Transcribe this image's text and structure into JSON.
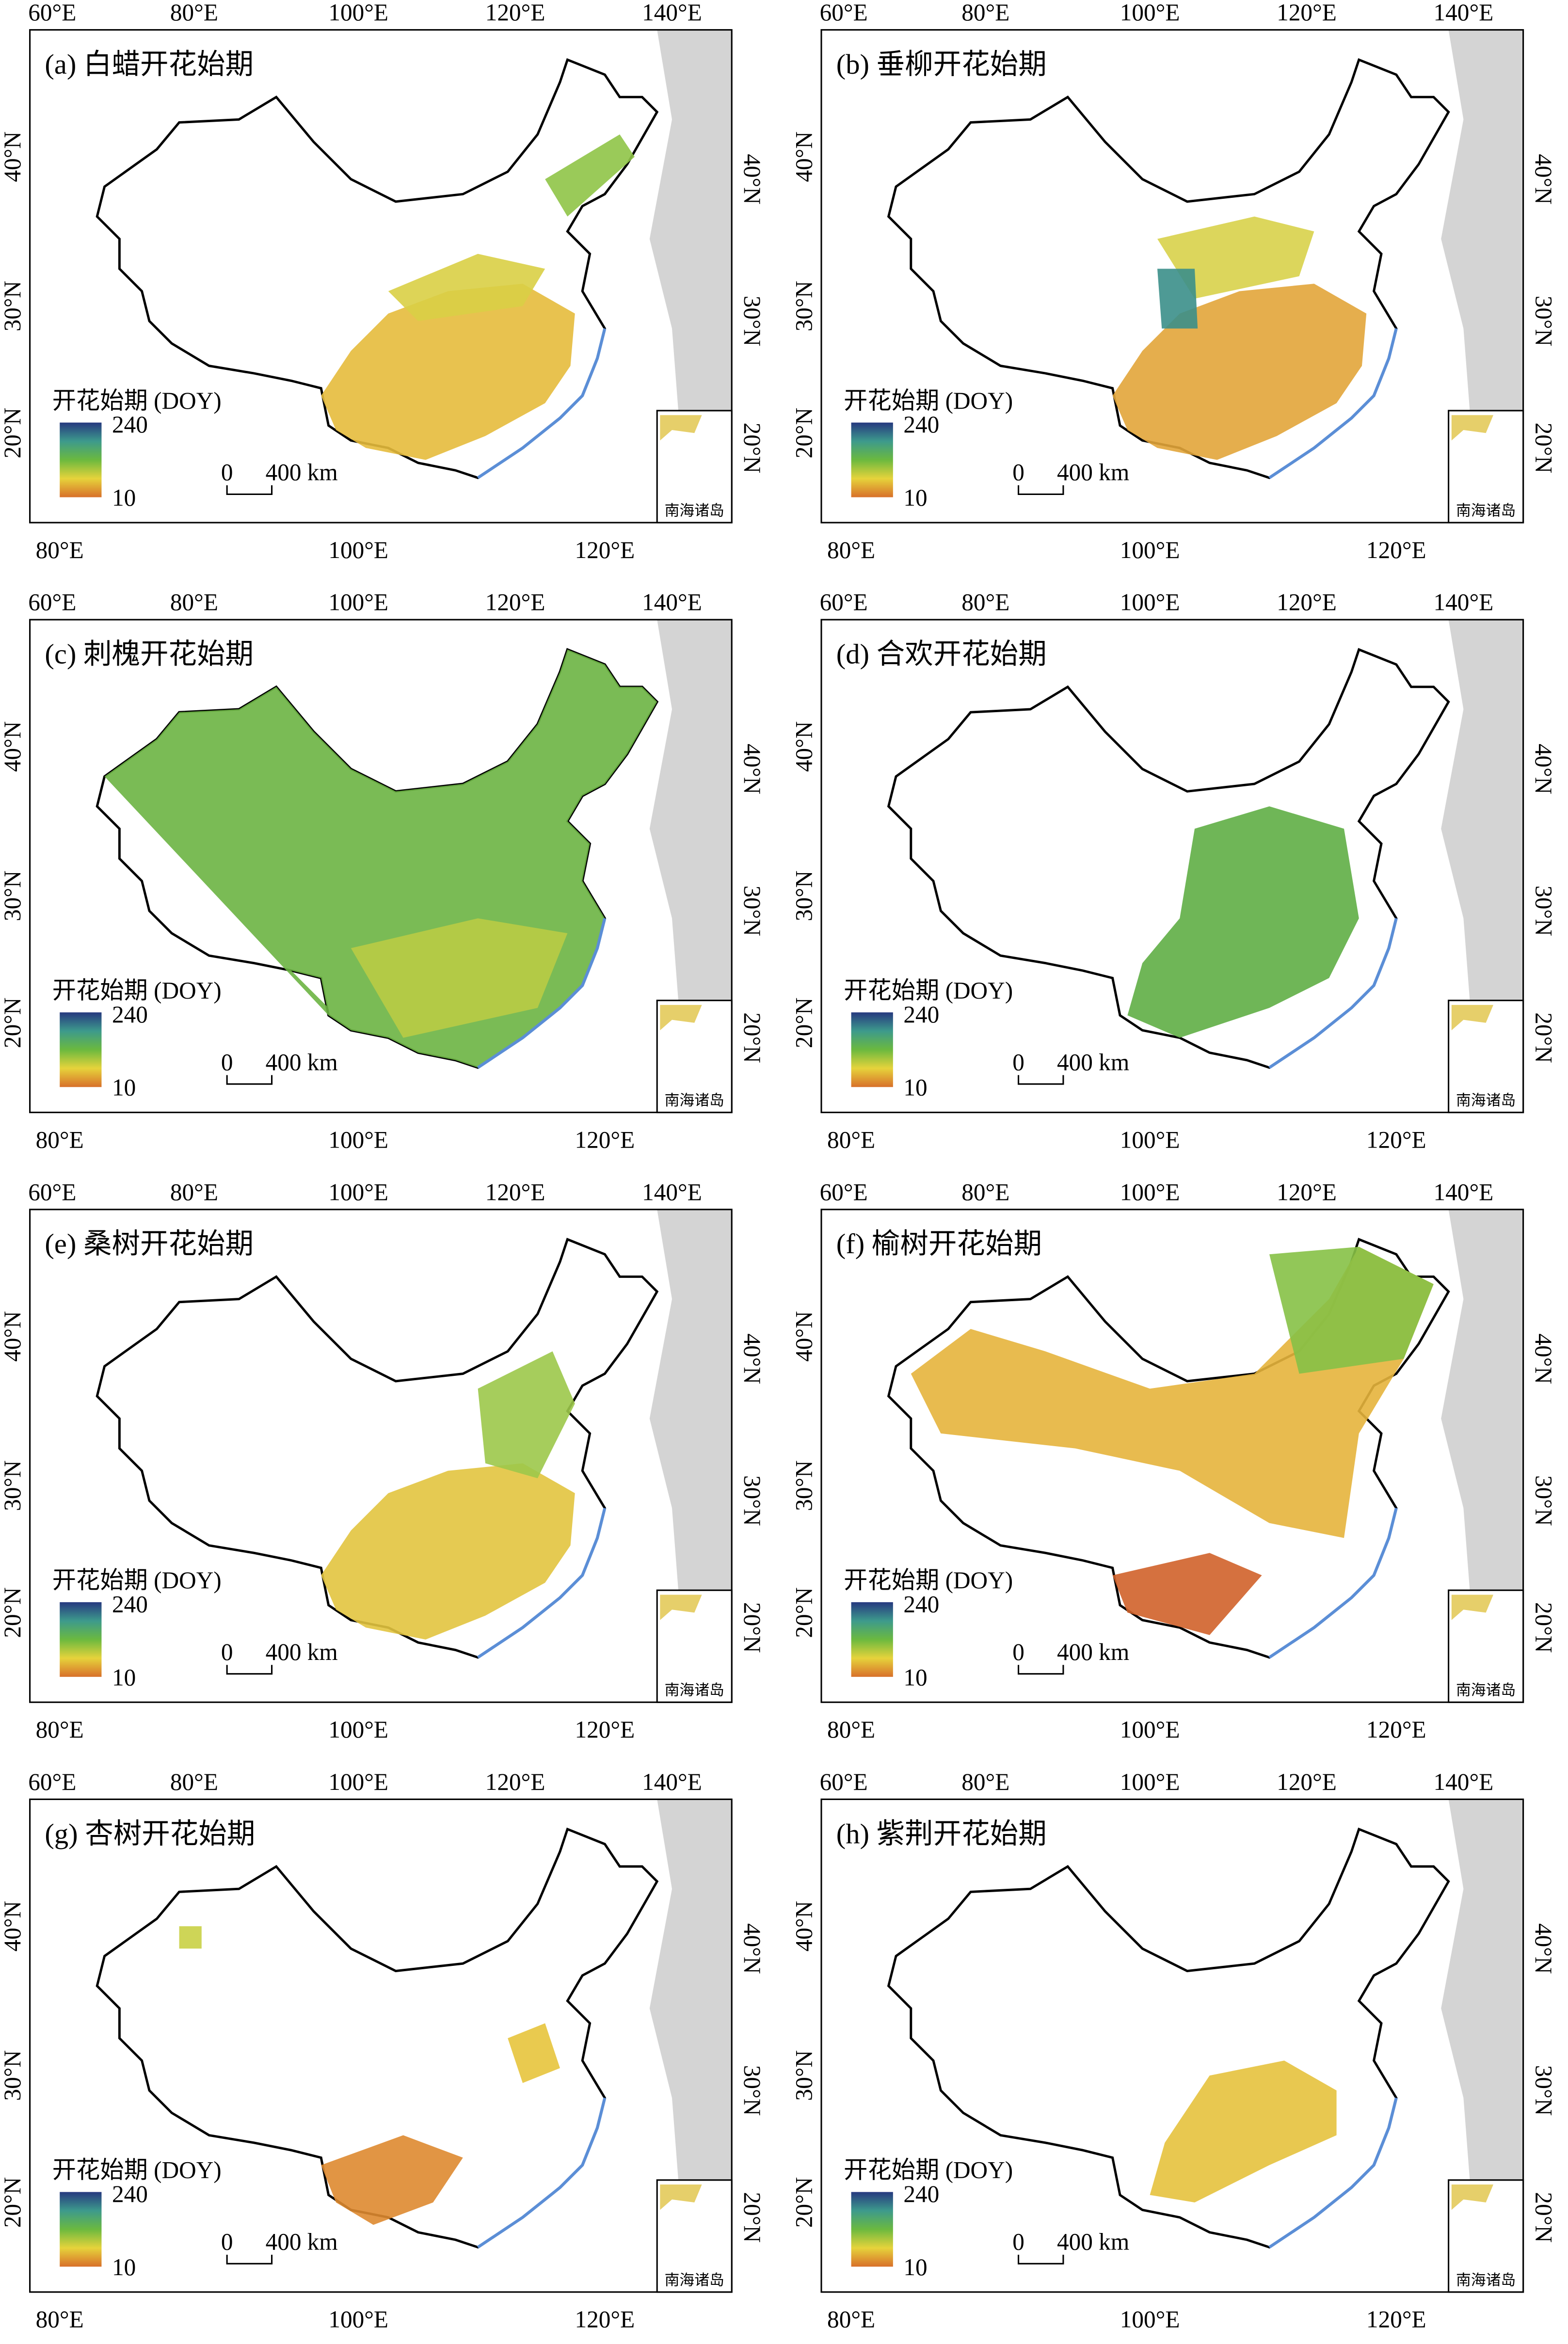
{
  "axes": {
    "top_labels": [
      "60°E",
      "80°E",
      "100°E",
      "120°E",
      "140°E"
    ],
    "bottom_labels": [
      "80°E",
      "100°E",
      "120°E"
    ],
    "lat_labels": [
      "40°N",
      "30°N",
      "20°N"
    ]
  },
  "colorbar": {
    "title": "开花始期 (DOY)",
    "max": 240,
    "min": 10
  },
  "scale_bar": {
    "zero": "0",
    "distance": "400 km"
  },
  "inset_label": "南海诸岛",
  "panels": [
    {
      "title": "(a) 白蜡开花始期"
    },
    {
      "title": "(b) 垂柳开花始期"
    },
    {
      "title": "(c) 刺槐开花始期"
    },
    {
      "title": "(d) 合欢开花始期"
    },
    {
      "title": "(e) 桑树开花始期"
    },
    {
      "title": "(f) 榆树开花始期"
    },
    {
      "title": "(g) 杏树开花始期"
    },
    {
      "title": "(h) 紫荆开花始期"
    }
  ]
}
